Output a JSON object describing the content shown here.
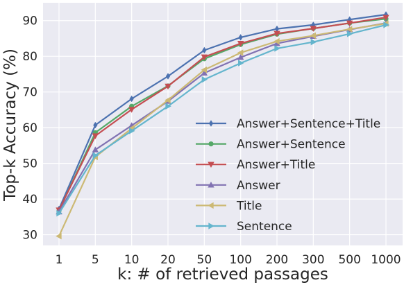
{
  "chart_data": {
    "type": "line",
    "title": "",
    "xlabel": "k: # of retrieved passages",
    "ylabel": "Top-k Accuracy (%)",
    "categories": [
      "1",
      "5",
      "10",
      "20",
      "50",
      "100",
      "200",
      "300",
      "500",
      "1000"
    ],
    "ylim": [
      27,
      95
    ],
    "yticks": [
      30,
      40,
      50,
      60,
      70,
      80,
      90
    ],
    "grid": true,
    "legend_position": "lower-right",
    "series": [
      {
        "name": "Answer+Sentence+Title",
        "color": "#4c72b0",
        "marker": "diamond",
        "values": [
          37.2,
          60.7,
          68.1,
          74.4,
          81.7,
          85.3,
          87.7,
          88.8,
          90.3,
          91.7
        ]
      },
      {
        "name": "Answer+Sentence",
        "color": "#55a868",
        "marker": "circle",
        "values": [
          36.7,
          58.6,
          66.0,
          71.7,
          79.3,
          83.3,
          86.2,
          87.8,
          89.3,
          90.5
        ]
      },
      {
        "name": "Answer+Title",
        "color": "#c44e52",
        "marker": "triangle-down",
        "values": [
          36.9,
          57.7,
          65.1,
          71.6,
          79.8,
          83.6,
          86.4,
          87.8,
          89.3,
          90.9
        ]
      },
      {
        "name": "Answer",
        "color": "#8172b2",
        "marker": "triangle-up",
        "values": [
          36.4,
          53.8,
          60.6,
          67.4,
          75.3,
          79.7,
          83.6,
          85.6,
          87.5,
          89.3
        ]
      },
      {
        "name": "Title",
        "color": "#ccb974",
        "marker": "triangle-left",
        "values": [
          29.6,
          51.8,
          59.8,
          67.7,
          76.2,
          81.0,
          84.2,
          85.8,
          87.6,
          89.2
        ]
      },
      {
        "name": "Sentence",
        "color": "#64b5cd",
        "marker": "triangle-right",
        "values": [
          36.0,
          52.2,
          59.1,
          66.0,
          73.5,
          78.1,
          82.2,
          84.0,
          86.3,
          88.8
        ]
      }
    ]
  }
}
